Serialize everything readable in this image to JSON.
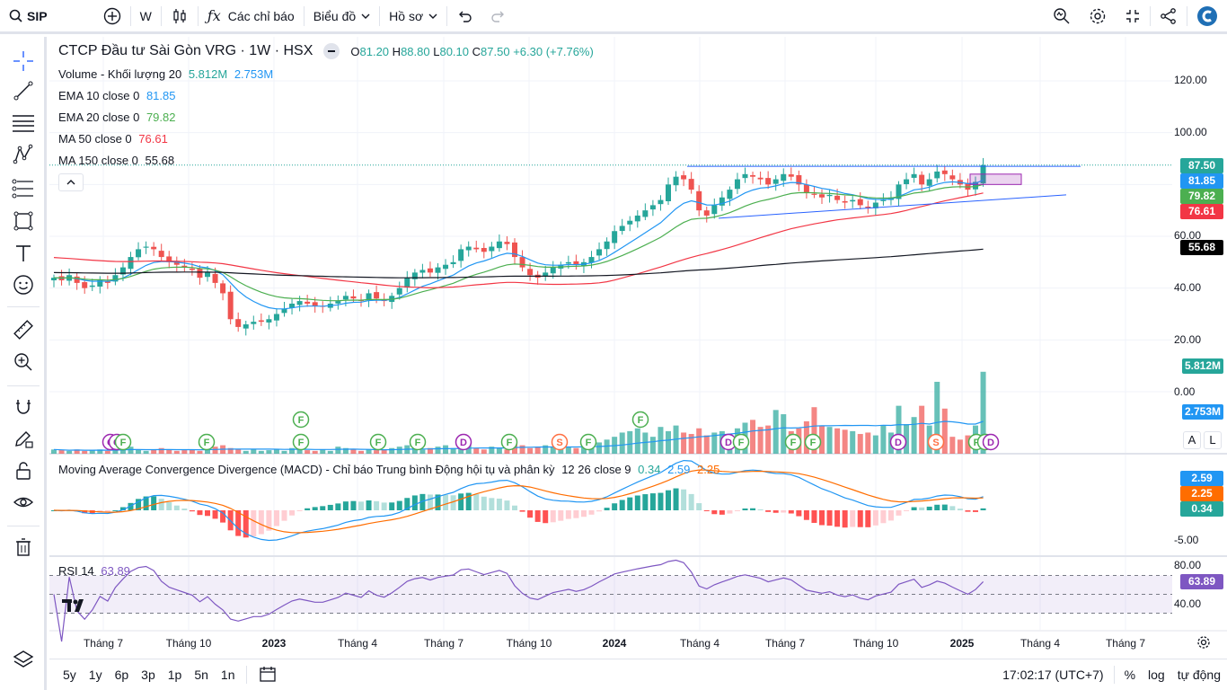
{
  "topbar": {
    "logo": "SIP",
    "interval": "W",
    "indicators": "Các chỉ báo",
    "chart_menu": "Biểu đồ",
    "profile": "Hồ sơ"
  },
  "legend": {
    "title": "CTCP Đầu tư Sài Gòn VRG · 1W · HSX",
    "ohlc": {
      "o_label": "O",
      "o": "81.20",
      "h_label": "H",
      "h": "88.80",
      "l_label": "L",
      "l": "80.10",
      "c_label": "C",
      "c": "87.50",
      "chg": "+6.30 (+7.76%)"
    },
    "volume": {
      "label": "Volume - Khối lượng 20",
      "v1": "5.812M",
      "v2": "2.753M"
    },
    "ema10": {
      "label": "EMA 10 close 0",
      "value": "81.85"
    },
    "ema20": {
      "label": "EMA 20 close 0",
      "value": "79.82"
    },
    "ma50": {
      "label": "MA 50 close 0",
      "value": "76.61"
    },
    "ma150": {
      "label": "MA 150 close 0",
      "value": "55.68"
    },
    "macd": {
      "label": "Moving Average Convergence Divergence (MACD) - Chỉ báo Trung bình Động hội tụ và phân kỳ",
      "params": "12 26 close 9",
      "v1": "0.34",
      "v2": "2.59",
      "v3": "2.25"
    },
    "rsi": {
      "label": "RSI 14",
      "value": "63.89"
    }
  },
  "badges": {
    "close": "87.50",
    "ema10": "81.85",
    "ema20": "79.82",
    "ma50": "76.61",
    "ma150": "55.68",
    "vol": "5.812M",
    "volma": "2.753M",
    "macd_hist": "0.34",
    "macd_line": "2.59",
    "macd_signal": "2.25",
    "rsi": "63.89"
  },
  "colors": {
    "up": "#26a69a",
    "down": "#ef5350",
    "ema10": "#2196f3",
    "ema20": "#4caf50",
    "ma50": "#f23645",
    "ma150": "#131722",
    "macd": "#2196f3",
    "signal": "#ff6d00",
    "rsi": "#7e57c2"
  },
  "axis": {
    "price_ticks": [
      "120.00",
      "100.00",
      "60.00",
      "40.00",
      "20.00",
      "0.00"
    ],
    "macd_ticks": [
      "-5.00"
    ],
    "rsi_ticks": [
      "80.00",
      "40.00"
    ],
    "time_labels": [
      "Tháng 7",
      "Tháng 10",
      "2023",
      "Tháng 4",
      "Tháng 7",
      "Tháng 10",
      "2024",
      "Tháng 4",
      "Tháng 7",
      "Tháng 10",
      "2025",
      "Tháng 4",
      "Tháng 7"
    ]
  },
  "bottombar": {
    "ranges": [
      "5y",
      "1y",
      "6p",
      "3p",
      "1p",
      "5n",
      "1n"
    ],
    "clock": "17:02:17 (UTC+7)",
    "pct": "%",
    "log": "log",
    "auto": "tự động"
  },
  "scale_buttons": {
    "a": "A",
    "l": "L"
  },
  "chart_data": {
    "type": "candlestick",
    "interval": "1W",
    "x_start": "2022-06",
    "x_end": "2025-03",
    "price_ylim": [
      0,
      125
    ],
    "closes": [
      44,
      43,
      45,
      42,
      40,
      41,
      43,
      42,
      45,
      48,
      52,
      55,
      56,
      55,
      52,
      50,
      49,
      48,
      47,
      44,
      46,
      42,
      38,
      28,
      25,
      26,
      27,
      27,
      28,
      30,
      32,
      34,
      35,
      34,
      33,
      33,
      34,
      35,
      37,
      36,
      35,
      38,
      36,
      35,
      37,
      40,
      44,
      46,
      47,
      46,
      48,
      49,
      50,
      55,
      56,
      55,
      54,
      56,
      58,
      57,
      52,
      48,
      45,
      44,
      46,
      48,
      49,
      50,
      49,
      50,
      52,
      55,
      58,
      62,
      64,
      66,
      68,
      70,
      72,
      74,
      80,
      83,
      82,
      78,
      70,
      68,
      72,
      75,
      78,
      82,
      84,
      83,
      82,
      80,
      82,
      84,
      83,
      80,
      77,
      76,
      75,
      76,
      74,
      73,
      74,
      72,
      71,
      73,
      74,
      75,
      80,
      82,
      84,
      80,
      82,
      85,
      84,
      82,
      80,
      78,
      81,
      87.5
    ],
    "volume_ylim": [
      0,
      6.5
    ],
    "volume_m": [
      0.3,
      0.25,
      0.2,
      0.3,
      0.2,
      0.25,
      0.3,
      0.2,
      0.3,
      0.4,
      0.5,
      0.3,
      0.2,
      0.3,
      0.4,
      0.3,
      0.2,
      0.25,
      0.3,
      0.2,
      0.4,
      0.5,
      0.6,
      0.4,
      0.3,
      0.2,
      0.3,
      0.2,
      0.25,
      0.3,
      0.2,
      0.4,
      0.3,
      0.25,
      0.2,
      0.3,
      0.2,
      0.5,
      0.4,
      0.3,
      0.2,
      0.3,
      0.25,
      0.3,
      0.4,
      0.5,
      0.6,
      0.4,
      0.3,
      0.4,
      0.5,
      0.6,
      0.4,
      0.5,
      0.6,
      0.4,
      0.3,
      0.5,
      0.4,
      0.3,
      0.8,
      0.6,
      0.4,
      0.5,
      0.6,
      0.5,
      0.4,
      0.5,
      0.4,
      0.6,
      0.7,
      0.8,
      1.0,
      1.2,
      1.5,
      1.6,
      1.8,
      1.5,
      1.2,
      1.9,
      1.6,
      2.0,
      1.5,
      1.4,
      1.8,
      1.3,
      1.5,
      1.6,
      1.4,
      1.8,
      2.2,
      2.4,
      1.9,
      2.0,
      3.1,
      2.8,
      1.6,
      1.8,
      2.3,
      3.3,
      2.0,
      1.9,
      1.8,
      1.7,
      1.6,
      1.4,
      1.5,
      1.3,
      2.0,
      1.5,
      3.4,
      2.1,
      2.6,
      3.4,
      2.0,
      5.1,
      3.2,
      1.2,
      1.0,
      1.3,
      2.0,
      5.812
    ],
    "macd_ylim": [
      -7,
      5
    ],
    "rsi_ylim": [
      20,
      90
    ],
    "rsi_bands": [
      30,
      50,
      70
    ],
    "markers": [
      "C",
      "C",
      "F",
      "F",
      "F",
      "F",
      "F",
      "D",
      "F",
      "S",
      "F",
      "D",
      "F",
      "F",
      "F",
      "D",
      "S",
      "F",
      "F",
      "D",
      "F",
      "F"
    ]
  }
}
